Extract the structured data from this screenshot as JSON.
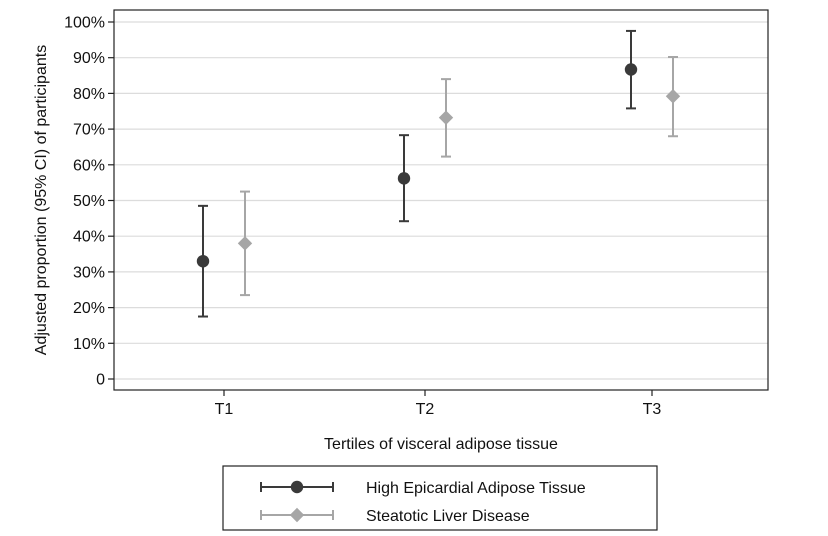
{
  "chart_data": {
    "type": "scatter",
    "title": "",
    "xlabel": "Tertiles of visceral adipose tissue",
    "ylabel": "Adjusted proportion (95% CI) of participants",
    "categories": [
      "T1",
      "T2",
      "T3"
    ],
    "ylim": [
      0,
      100
    ],
    "yticks": [
      0,
      10,
      20,
      30,
      40,
      50,
      60,
      70,
      80,
      90,
      100
    ],
    "ytick_labels": [
      "0",
      "10%",
      "20%",
      "30%",
      "40%",
      "50%",
      "60%",
      "70%",
      "80%",
      "90%",
      "100%"
    ],
    "grid": true,
    "legend_position": "bottom",
    "series": [
      {
        "name": "High Epicardial Adipose Tissue",
        "marker": "circle",
        "color": "#3a3a3a",
        "values": [
          33,
          56.2,
          86.7
        ],
        "ci_low": [
          17.5,
          44.2,
          75.8
        ],
        "ci_high": [
          48.5,
          68.3,
          97.5
        ]
      },
      {
        "name": "Steatotic Liver Disease",
        "marker": "diamond",
        "color": "#a6a6a6",
        "values": [
          38,
          73.2,
          79.2
        ],
        "ci_low": [
          23.5,
          62.3,
          68
        ],
        "ci_high": [
          52.5,
          84,
          90.2
        ]
      }
    ]
  }
}
